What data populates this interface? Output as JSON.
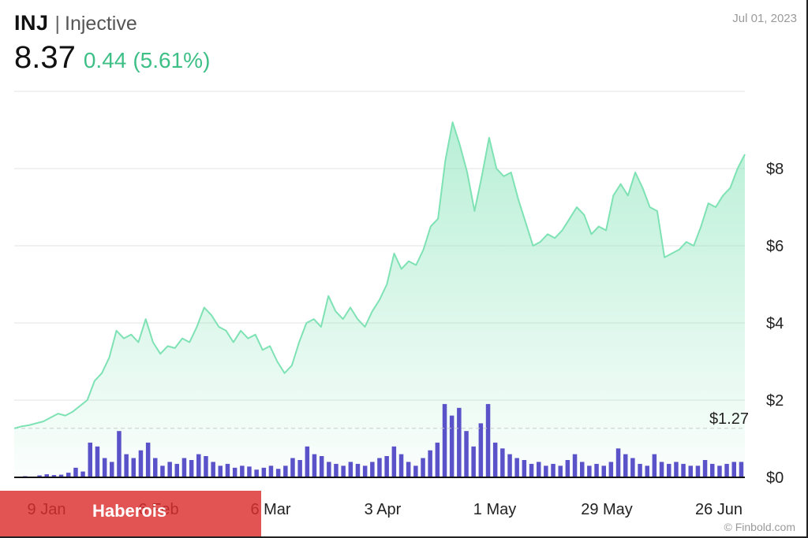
{
  "header": {
    "ticker": "INJ",
    "separator": "|",
    "name": "Injective",
    "price": "8.37",
    "change": "0.44",
    "change_pct": "(5.61%)",
    "date": "Jul 01, 2023"
  },
  "watermark": "© Finbold.com",
  "banner": {
    "text": "Haberois"
  },
  "colors": {
    "up": "#3dbf86",
    "line": "#7ee2b4",
    "volume": "#5a52c8",
    "grid": "#e3e3e3",
    "banner": "#dc2d2d"
  },
  "chart_data": {
    "type": "area",
    "x_tick_labels": [
      "9 Jan",
      "6 Feb",
      "6 Mar",
      "3 Apr",
      "1 May",
      "29 May",
      "26 Jun"
    ],
    "y_tick_labels": [
      "$8",
      "$6",
      "$4",
      "$2",
      "$0"
    ],
    "y_ticks": [
      8,
      6,
      4,
      2,
      0
    ],
    "ylim": [
      0,
      10
    ],
    "start_reference": {
      "value": 1.27,
      "label": "$1.27"
    },
    "grid": true,
    "series": [
      {
        "values": [
          1.27,
          1.32,
          1.35,
          1.4,
          1.45,
          1.55,
          1.65,
          1.6,
          1.7,
          1.85,
          2.0,
          2.5,
          2.7,
          3.1,
          3.8,
          3.6,
          3.7,
          3.5,
          4.1,
          3.5,
          3.2,
          3.4,
          3.35,
          3.6,
          3.5,
          3.9,
          4.4,
          4.2,
          3.9,
          3.8,
          3.5,
          3.8,
          3.6,
          3.7,
          3.3,
          3.4,
          3.0,
          2.7,
          2.9,
          3.5,
          4.0,
          4.1,
          3.9,
          4.7,
          4.3,
          4.1,
          4.4,
          4.1,
          3.9,
          4.3,
          4.6,
          5.0,
          5.8,
          5.4,
          5.6,
          5.5,
          5.9,
          6.5,
          6.7,
          8.2,
          9.2,
          8.6,
          7.9,
          6.9,
          7.8,
          8.8,
          8.0,
          7.8,
          7.9,
          7.2,
          6.6,
          6.0,
          6.1,
          6.3,
          6.2,
          6.4,
          6.7,
          7.0,
          6.8,
          6.3,
          6.5,
          6.4,
          7.3,
          7.6,
          7.3,
          7.9,
          7.5,
          7.0,
          6.9,
          5.7,
          5.8,
          5.9,
          6.1,
          6.0,
          6.5,
          7.1,
          7.0,
          7.3,
          7.5,
          8.0,
          8.37
        ]
      }
    ],
    "volume": [
      0.02,
      0.03,
      0.02,
      0.05,
      0.08,
      0.06,
      0.07,
      0.12,
      0.25,
      0.15,
      0.9,
      0.8,
      0.5,
      0.4,
      1.2,
      0.6,
      0.5,
      0.7,
      0.9,
      0.5,
      0.3,
      0.4,
      0.35,
      0.5,
      0.45,
      0.6,
      0.55,
      0.4,
      0.3,
      0.35,
      0.25,
      0.3,
      0.28,
      0.2,
      0.25,
      0.3,
      0.22,
      0.3,
      0.5,
      0.45,
      0.8,
      0.6,
      0.55,
      0.4,
      0.35,
      0.3,
      0.4,
      0.35,
      0.3,
      0.4,
      0.5,
      0.55,
      0.8,
      0.6,
      0.4,
      0.3,
      0.5,
      0.7,
      0.9,
      1.9,
      1.6,
      1.8,
      1.2,
      0.8,
      1.4,
      1.9,
      0.9,
      0.75,
      0.6,
      0.5,
      0.45,
      0.35,
      0.4,
      0.3,
      0.35,
      0.3,
      0.45,
      0.6,
      0.4,
      0.3,
      0.35,
      0.3,
      0.4,
      0.75,
      0.6,
      0.5,
      0.35,
      0.3,
      0.6,
      0.4,
      0.35,
      0.4,
      0.35,
      0.3,
      0.3,
      0.45,
      0.35,
      0.3,
      0.35,
      0.4,
      0.4
    ]
  }
}
